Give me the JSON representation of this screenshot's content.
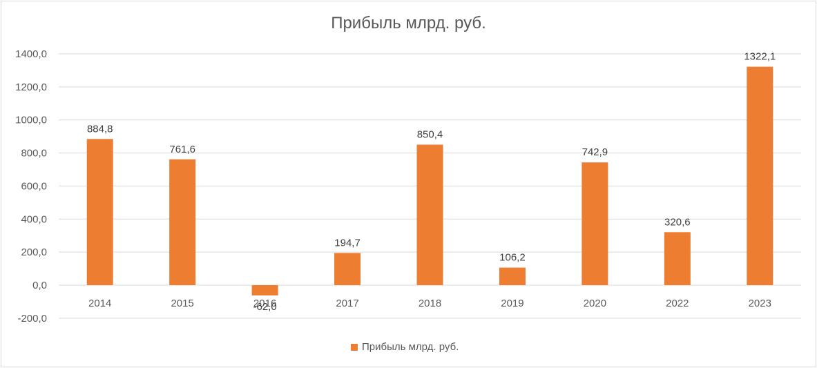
{
  "chart_data": {
    "type": "bar",
    "title": "Прибыль млрд. руб.",
    "xlabel": "",
    "ylabel": "",
    "categories": [
      "2014",
      "2015",
      "2016",
      "2017",
      "2018",
      "2019",
      "2020",
      "2022",
      "2023"
    ],
    "series": [
      {
        "name": "Прибыль млрд. руб.",
        "color": "#ED7D31",
        "values": [
          884.8,
          761.6,
          -62.0,
          194.7,
          850.4,
          106.2,
          742.9,
          320.6,
          1322.1
        ],
        "data_labels": [
          "884,8",
          "761,6",
          "-62,0",
          "194,7",
          "850,4",
          "106,2",
          "742,9",
          "320,6",
          "1322,1"
        ]
      }
    ],
    "ylim": [
      -200,
      1400
    ],
    "yticks": [
      -200,
      0,
      200,
      400,
      600,
      800,
      1000,
      1200,
      1400
    ],
    "ytick_labels": [
      "-200,0",
      "0,0",
      "200,0",
      "400,0",
      "600,0",
      "800,0",
      "1000,0",
      "1200,0",
      "1400,0"
    ],
    "grid": true,
    "legend_position": "bottom"
  },
  "legend": {
    "label": "Прибыль млрд. руб.",
    "color": "#ED7D31"
  }
}
